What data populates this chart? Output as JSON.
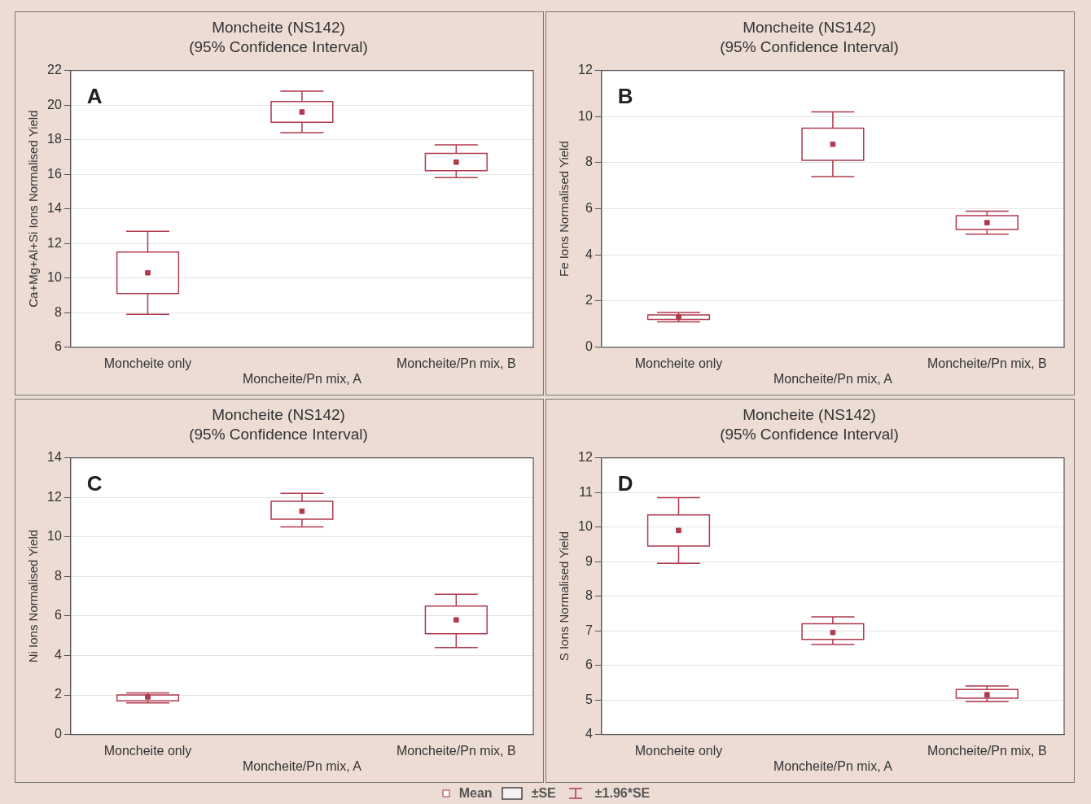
{
  "chart_data": [
    {
      "type": "box",
      "title": "Moncheite (NS142)",
      "subtitle": "(95% Confidence Interval)",
      "ylabel": "Ca+Mg+Al+Si Ions Normalised Yield",
      "categories": [
        "Moncheite only",
        "Moncheite/Pn mix, A",
        "Moncheite/Pn mix, B"
      ],
      "ylim": [
        6,
        22
      ],
      "yticks": [
        6,
        8,
        10,
        12,
        14,
        16,
        18,
        20,
        22
      ],
      "grid": "y",
      "annotations": [
        "A"
      ],
      "series": [
        {
          "color": "#b03a4e",
          "boxes": [
            {
              "low": 7.9,
              "q1": 9.1,
              "median": 10.3,
              "q3": 11.5,
              "high": 12.7
            },
            {
              "low": 18.4,
              "q1": 19.0,
              "median": 19.6,
              "q3": 20.2,
              "high": 20.8
            },
            {
              "low": 15.8,
              "q1": 16.2,
              "median": 16.7,
              "q3": 17.2,
              "high": 17.7
            }
          ]
        }
      ]
    },
    {
      "type": "box",
      "title": "Moncheite (NS142)",
      "subtitle": "(95% Confidence Interval)",
      "ylabel": "Fe Ions Normalised Yield",
      "categories": [
        "Moncheite only",
        "Moncheite/Pn mix, A",
        "Moncheite/Pn mix, B"
      ],
      "ylim": [
        0,
        12
      ],
      "yticks": [
        0,
        2,
        4,
        6,
        8,
        10,
        12
      ],
      "grid": "y",
      "annotations": [
        "B"
      ],
      "series": [
        {
          "color": "#b03a4e",
          "boxes": [
            {
              "low": 1.1,
              "q1": 1.2,
              "median": 1.3,
              "q3": 1.4,
              "high": 1.5
            },
            {
              "low": 7.4,
              "q1": 8.1,
              "median": 8.8,
              "q3": 9.5,
              "high": 10.2
            },
            {
              "low": 4.9,
              "q1": 5.1,
              "median": 5.4,
              "q3": 5.7,
              "high": 5.9
            }
          ]
        }
      ]
    },
    {
      "type": "box",
      "title": "Moncheite (NS142)",
      "subtitle": "(95% Confidence Interval)",
      "ylabel": "Ni Ions Normalised Yield",
      "categories": [
        "Moncheite only",
        "Moncheite/Pn mix, A",
        "Moncheite/Pn mix, B"
      ],
      "ylim": [
        0,
        14
      ],
      "yticks": [
        0,
        2,
        4,
        6,
        8,
        10,
        12,
        14
      ],
      "grid": "y",
      "annotations": [
        "C"
      ],
      "series": [
        {
          "color": "#b03a4e",
          "boxes": [
            {
              "low": 1.6,
              "q1": 1.7,
              "median": 1.9,
              "q3": 2.0,
              "high": 2.1
            },
            {
              "low": 10.5,
              "q1": 10.9,
              "median": 11.3,
              "q3": 11.8,
              "high": 12.2
            },
            {
              "low": 4.4,
              "q1": 5.1,
              "median": 5.8,
              "q3": 6.5,
              "high": 7.1
            }
          ]
        }
      ]
    },
    {
      "type": "box",
      "title": "Moncheite (NS142)",
      "subtitle": "(95% Confidence Interval)",
      "ylabel": "S Ions Normalised Yield",
      "categories": [
        "Moncheite only",
        "Moncheite/Pn mix, A",
        "Moncheite/Pn mix, B"
      ],
      "ylim": [
        4,
        12
      ],
      "yticks": [
        4,
        5,
        6,
        7,
        8,
        9,
        10,
        11,
        12
      ],
      "grid": "y",
      "annotations": [
        "D"
      ],
      "series": [
        {
          "color": "#b03a4e",
          "boxes": [
            {
              "low": 8.95,
              "q1": 9.45,
              "median": 9.9,
              "q3": 10.35,
              "high": 10.85
            },
            {
              "low": 6.6,
              "q1": 6.75,
              "median": 6.95,
              "q3": 7.2,
              "high": 7.4
            },
            {
              "low": 4.95,
              "q1": 5.05,
              "median": 5.15,
              "q3": 5.3,
              "high": 5.4
            }
          ]
        }
      ]
    },
    {
      "type": "other",
      "annotations": [
        "Mean",
        "±SE",
        "±1.96*SE"
      ]
    }
  ]
}
